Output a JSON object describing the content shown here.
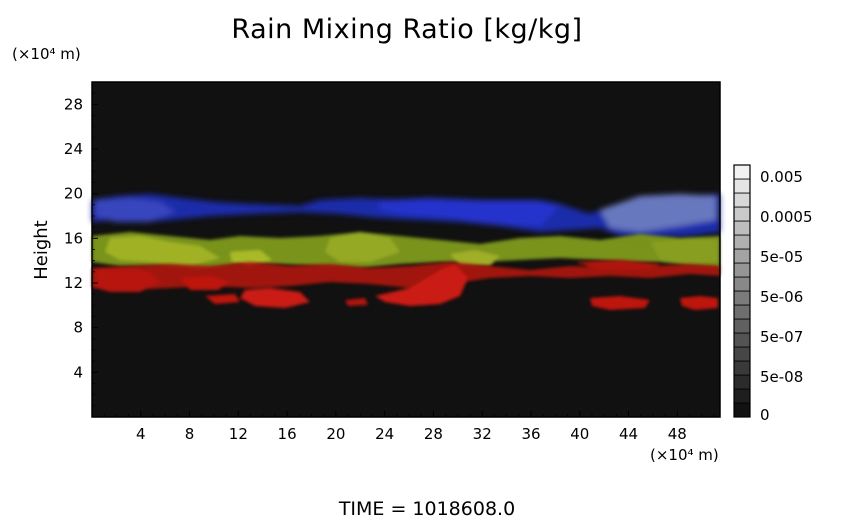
{
  "chart_data": {
    "type": "heatmap",
    "title": "Rain Mixing Ratio [kg/kg]",
    "ylabel": "Height",
    "y_unit": "(×10⁴ m)",
    "x_unit": "(×10⁴ m)",
    "xlim": [
      0,
      51.5
    ],
    "ylim": [
      0,
      30
    ],
    "x_ticks": [
      4,
      8,
      12,
      16,
      20,
      24,
      28,
      32,
      36,
      40,
      44,
      48
    ],
    "y_ticks": [
      4,
      8,
      12,
      16,
      20,
      24,
      28
    ],
    "colorbar": {
      "labels": [
        "0.005",
        "0.0005",
        "5e-05",
        "5e-06",
        "5e-07",
        "5e-08",
        "0"
      ]
    },
    "time_label": "TIME = 1018608.0",
    "layers": [
      {
        "color": "#1e2fc0",
        "y_range": [
          17.4,
          20.0
        ]
      },
      {
        "color": "#8fa81e",
        "y_range": [
          13.6,
          16.8
        ]
      },
      {
        "color": "#d11a14",
        "y_range": [
          9.6,
          13.6
        ]
      }
    ],
    "background_color": "#111111"
  }
}
